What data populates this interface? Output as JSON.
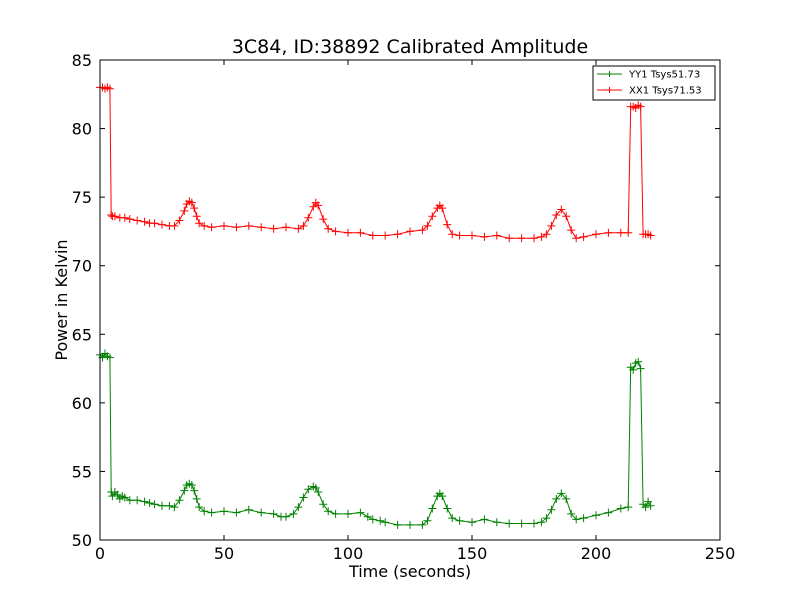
{
  "chart_data": {
    "type": "line",
    "title": "3C84, ID:38892 Calibrated Amplitude",
    "xlabel": "Time (seconds)",
    "ylabel": "Power in Kelvin",
    "xlim": [
      0,
      250
    ],
    "ylim": [
      50,
      85
    ],
    "xticks": [
      "0",
      "50",
      "100",
      "150",
      "200",
      "250"
    ],
    "yticks": [
      "50",
      "55",
      "60",
      "65",
      "70",
      "75",
      "80",
      "85"
    ],
    "grid": false,
    "legend_position": "top-right",
    "marker": "plus",
    "series": [
      {
        "name": "YY1 Tsys51.73",
        "color": "#008000",
        "x": [
          0,
          1,
          2,
          3,
          4,
          4.5,
          5,
          6,
          7,
          8,
          9,
          10,
          12,
          15,
          18,
          20,
          22,
          25,
          28,
          30,
          32,
          34,
          35,
          36,
          37,
          38,
          39,
          40,
          42,
          45,
          50,
          55,
          60,
          65,
          70,
          73,
          75,
          78,
          80,
          82,
          84,
          86,
          87,
          88,
          90,
          92,
          95,
          100,
          105,
          108,
          110,
          113,
          115,
          120,
          125,
          130,
          132,
          134,
          136,
          137,
          138,
          140,
          142,
          145,
          150,
          155,
          160,
          165,
          170,
          175,
          178,
          180,
          182,
          184,
          186,
          188,
          190,
          192,
          195,
          200,
          205,
          210,
          213,
          214,
          215,
          216,
          217,
          218,
          219,
          220,
          221,
          222
        ],
        "y": [
          63.5,
          63.3,
          63.6,
          63.4,
          63.3,
          53.5,
          53.2,
          53.5,
          53.3,
          53.0,
          53.2,
          53.1,
          52.9,
          52.9,
          52.8,
          52.7,
          52.6,
          52.5,
          52.5,
          52.4,
          52.9,
          53.6,
          54.0,
          54.1,
          54.0,
          53.6,
          53.0,
          52.4,
          52.1,
          52.0,
          52.1,
          52.0,
          52.2,
          52.0,
          51.9,
          51.7,
          51.7,
          51.9,
          52.4,
          53.1,
          53.7,
          53.9,
          53.8,
          53.5,
          52.6,
          52.1,
          51.9,
          51.9,
          52.0,
          51.7,
          51.5,
          51.4,
          51.3,
          51.1,
          51.1,
          51.1,
          51.4,
          52.3,
          53.2,
          53.4,
          53.2,
          52.3,
          51.6,
          51.4,
          51.3,
          51.5,
          51.3,
          51.2,
          51.2,
          51.2,
          51.3,
          51.6,
          52.2,
          53.0,
          53.4,
          53.0,
          51.9,
          51.5,
          51.6,
          51.8,
          52.0,
          52.3,
          52.4,
          62.6,
          62.4,
          62.9,
          63.0,
          62.5,
          52.6,
          52.4,
          52.8,
          52.5
        ]
      },
      {
        "name": "XX1 Tsys71.53",
        "color": "#ff0000",
        "x": [
          0,
          1,
          2,
          3,
          4,
          4.5,
          5,
          6,
          8,
          10,
          12,
          15,
          18,
          20,
          22,
          25,
          28,
          30,
          32,
          34,
          35,
          36,
          37,
          38,
          39,
          40,
          42,
          45,
          50,
          55,
          60,
          65,
          70,
          75,
          80,
          82,
          84,
          86,
          87,
          88,
          90,
          92,
          95,
          100,
          105,
          110,
          115,
          120,
          125,
          130,
          132,
          134,
          136,
          137,
          138,
          140,
          142,
          145,
          150,
          155,
          160,
          165,
          170,
          175,
          178,
          180,
          182,
          184,
          186,
          188,
          190,
          192,
          195,
          200,
          205,
          210,
          213,
          214,
          215,
          216,
          217,
          218,
          219,
          220,
          221,
          222
        ],
        "y": [
          83.0,
          83.0,
          82.9,
          83.0,
          82.9,
          73.7,
          73.6,
          73.6,
          73.5,
          73.5,
          73.4,
          73.3,
          73.2,
          73.1,
          73.1,
          73.0,
          72.9,
          72.9,
          73.3,
          74.0,
          74.5,
          74.7,
          74.6,
          74.2,
          73.6,
          73.1,
          72.9,
          72.8,
          72.9,
          72.8,
          72.9,
          72.8,
          72.7,
          72.8,
          72.7,
          72.9,
          73.5,
          74.3,
          74.6,
          74.4,
          73.4,
          72.7,
          72.5,
          72.4,
          72.4,
          72.2,
          72.2,
          72.3,
          72.5,
          72.6,
          72.9,
          73.6,
          74.2,
          74.4,
          74.2,
          73.0,
          72.3,
          72.2,
          72.2,
          72.1,
          72.2,
          72.0,
          72.0,
          72.0,
          72.1,
          72.3,
          72.9,
          73.7,
          74.1,
          73.6,
          72.6,
          72.0,
          72.1,
          72.3,
          72.4,
          72.4,
          72.4,
          81.6,
          81.6,
          81.5,
          81.7,
          81.6,
          72.3,
          72.3,
          72.3,
          72.2
        ]
      }
    ]
  }
}
